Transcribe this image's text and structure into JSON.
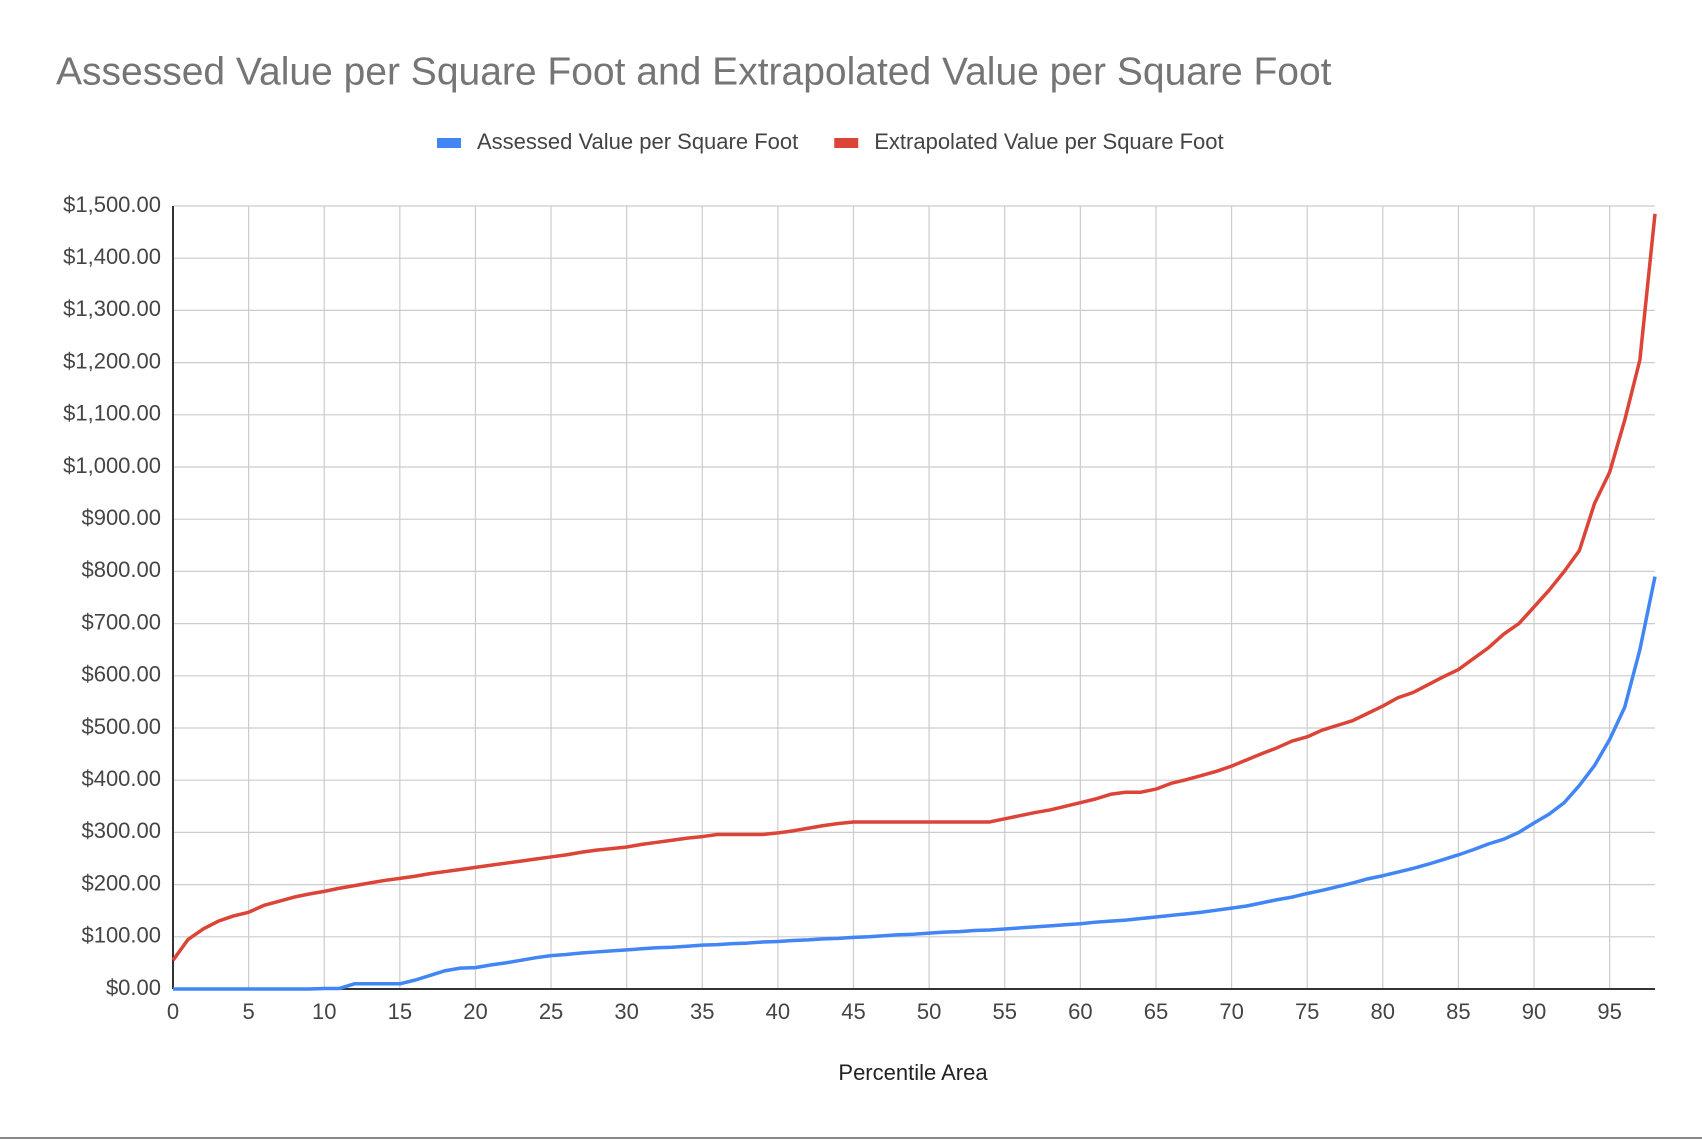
{
  "chart_data": {
    "type": "line",
    "title": "Assessed Value per Square Foot and Extrapolated Value per Square Foot",
    "x_label": "Percentile Area",
    "x": [
      0,
      1,
      2,
      3,
      4,
      5,
      6,
      7,
      8,
      9,
      10,
      11,
      12,
      13,
      14,
      15,
      16,
      17,
      18,
      19,
      20,
      21,
      22,
      23,
      24,
      25,
      26,
      27,
      28,
      29,
      30,
      31,
      32,
      33,
      34,
      35,
      36,
      37,
      38,
      39,
      40,
      41,
      42,
      43,
      44,
      45,
      46,
      47,
      48,
      49,
      50,
      51,
      52,
      53,
      54,
      55,
      56,
      57,
      58,
      59,
      60,
      61,
      62,
      63,
      64,
      65,
      66,
      67,
      68,
      69,
      70,
      71,
      72,
      73,
      74,
      75,
      76,
      77,
      78,
      79,
      80,
      81,
      82,
      83,
      84,
      85,
      86,
      87,
      88,
      89,
      90,
      91,
      92,
      93,
      94,
      95,
      96,
      97,
      98
    ],
    "series": [
      {
        "name": "Assessed Value per Square Foot",
        "color": "#4285f4",
        "values": [
          0,
          0,
          0,
          0,
          0,
          0,
          0,
          0,
          0,
          0,
          1,
          1,
          10,
          10,
          10,
          10,
          17,
          26,
          35,
          40,
          41,
          46,
          50,
          55,
          60,
          64,
          66,
          69,
          71,
          73,
          75,
          77,
          79,
          80,
          82,
          84,
          85,
          87,
          88,
          90,
          91,
          93,
          94,
          96,
          97,
          99,
          100,
          102,
          104,
          105,
          107,
          109,
          110,
          112,
          113,
          115,
          117,
          119,
          121,
          123,
          125,
          128,
          130,
          132,
          135,
          138,
          141,
          144,
          147,
          151,
          155,
          159,
          165,
          171,
          176,
          183,
          189,
          196,
          203,
          211,
          217,
          224,
          231,
          239,
          248,
          257,
          267,
          278,
          287,
          300,
          318,
          335,
          357,
          390,
          428,
          478,
          540,
          650,
          790
        ]
      },
      {
        "name": "Extrapolated Value per Square Foot",
        "color": "#db4437",
        "values": [
          55,
          95,
          115,
          130,
          140,
          147,
          160,
          168,
          176,
          182,
          187,
          193,
          198,
          203,
          208,
          212,
          216,
          221,
          225,
          229,
          233,
          237,
          241,
          245,
          249,
          253,
          257,
          262,
          266,
          269,
          272,
          277,
          281,
          285,
          289,
          292,
          296,
          296,
          296,
          296,
          299,
          303,
          308,
          313,
          317,
          320,
          320,
          320,
          320,
          320,
          320,
          320,
          320,
          320,
          320,
          326,
          332,
          338,
          343,
          350,
          357,
          364,
          373,
          377,
          377,
          383,
          394,
          401,
          409,
          417,
          427,
          439,
          451,
          462,
          475,
          483,
          496,
          505,
          514,
          528,
          542,
          558,
          568,
          583,
          598,
          612,
          633,
          654,
          680,
          700,
          732,
          764,
          800,
          840,
          930,
          990,
          1090,
          1205,
          1485
        ]
      }
    ],
    "xlim": [
      0,
      98
    ],
    "xticks": [
      0,
      5,
      10,
      15,
      20,
      25,
      30,
      35,
      40,
      45,
      50,
      55,
      60,
      65,
      70,
      75,
      80,
      85,
      90,
      95
    ],
    "ylim": [
      0,
      1500
    ],
    "yticks": [
      {
        "value": 0,
        "label": "$0.00"
      },
      {
        "value": 100,
        "label": "$100.00"
      },
      {
        "value": 200,
        "label": "$200.00"
      },
      {
        "value": 300,
        "label": "$300.00"
      },
      {
        "value": 400,
        "label": "$400.00"
      },
      {
        "value": 500,
        "label": "$500.00"
      },
      {
        "value": 600,
        "label": "$600.00"
      },
      {
        "value": 700,
        "label": "$700.00"
      },
      {
        "value": 800,
        "label": "$800.00"
      },
      {
        "value": 900,
        "label": "$900.00"
      },
      {
        "value": 1000,
        "label": "$1,000.00"
      },
      {
        "value": 1100,
        "label": "$1,100.00"
      },
      {
        "value": 1200,
        "label": "$1,200.00"
      },
      {
        "value": 1300,
        "label": "$1,300.00"
      },
      {
        "value": 1400,
        "label": "$1,400.00"
      },
      {
        "value": 1500,
        "label": "$1,500.00"
      }
    ],
    "grid": true,
    "legend": "top"
  }
}
